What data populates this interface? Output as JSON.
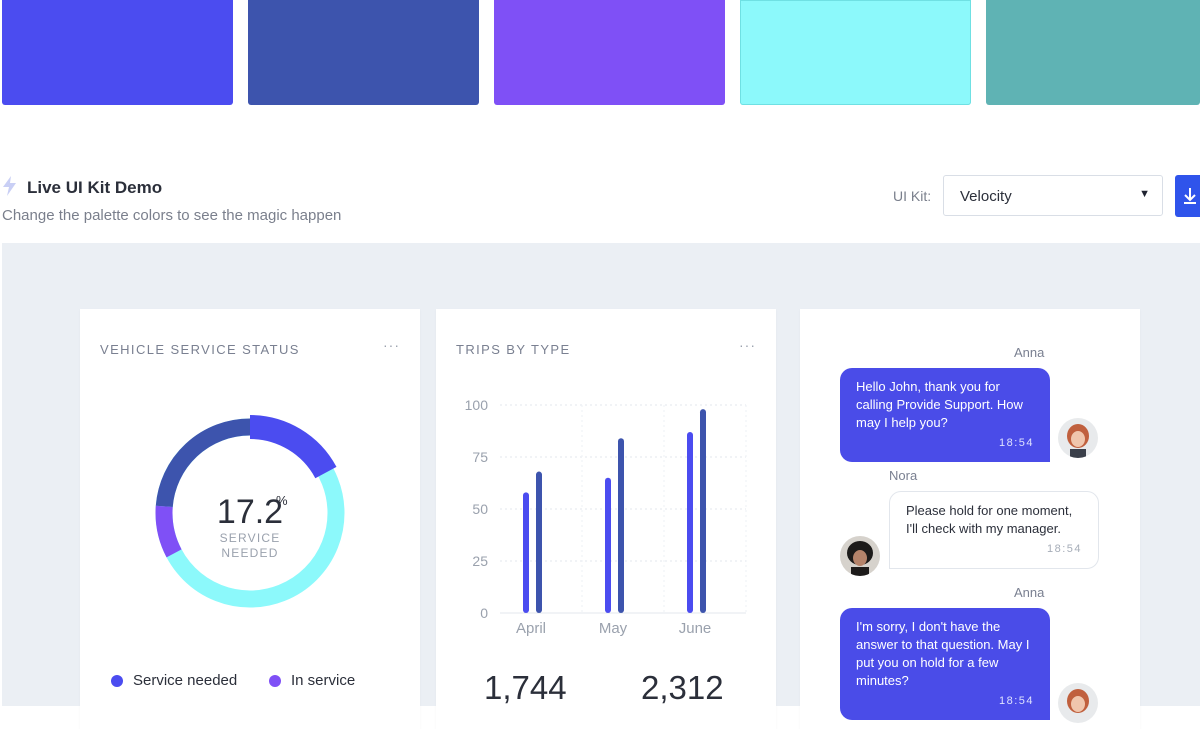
{
  "palette": {
    "swatches": [
      "#4b4cf0",
      "#3d54ad",
      "#7f50f6",
      "#8cf9fb",
      "#5fb3b4"
    ]
  },
  "header": {
    "title": "Live UI Kit Demo",
    "subtitle": "Change the palette colors to see the magic happen",
    "icon": "bolt-icon",
    "ui_kit_label": "UI Kit:",
    "ui_kit_value": "Velocity",
    "download_icon": "download-icon"
  },
  "service_card": {
    "title": "VEHICLE SERVICE STATUS",
    "menu": "···",
    "value": "17.2",
    "unit": "%",
    "label_line1": "SERVICE",
    "label_line2": "NEEDED",
    "legend": [
      {
        "label": "Service needed",
        "color": "#4b4cf0"
      },
      {
        "label": "In service",
        "color": "#7f50f6"
      }
    ],
    "segments": [
      {
        "name": "Service needed",
        "fraction": 0.172,
        "color": "#4b4cf0"
      },
      {
        "name": "cyan",
        "fraction": 0.5,
        "color": "#8cf9fb"
      },
      {
        "name": "In service",
        "fraction": 0.09,
        "color": "#7f50f6"
      },
      {
        "name": "navy",
        "fraction": 0.238,
        "color": "#3d54ad"
      }
    ]
  },
  "trips_card": {
    "title": "TRIPS BY TYPE",
    "menu": "···",
    "stats": [
      "1,744",
      "2,312"
    ]
  },
  "chart_data": {
    "type": "bar",
    "title": "TRIPS BY TYPE",
    "categories": [
      "April",
      "May",
      "June"
    ],
    "yticks": [
      "100",
      "75",
      "50",
      "25",
      "0"
    ],
    "ylim": [
      0,
      100
    ],
    "grid": true,
    "series": [
      {
        "values": [
          58,
          65,
          87
        ],
        "color": "#4b4cf0"
      },
      {
        "values": [
          68,
          84,
          98
        ],
        "color": "#3d54ad"
      }
    ]
  },
  "chat": {
    "messages": [
      {
        "sender": "Anna",
        "text": "Hello John, thank you for calling Provide Support. How may I help you?",
        "time": "18:54",
        "avatar": "anna-avatar-icon"
      },
      {
        "sender": "Nora",
        "text": "Please hold for one moment, I'll check with my manager.",
        "time": "18:54",
        "avatar": "nora-avatar-icon"
      },
      {
        "sender": "Anna",
        "text": "I'm sorry, I don't have the answer to that question. May I put you on hold for a few minutes?",
        "time": "18:54",
        "avatar": "anna-avatar-icon"
      }
    ]
  }
}
